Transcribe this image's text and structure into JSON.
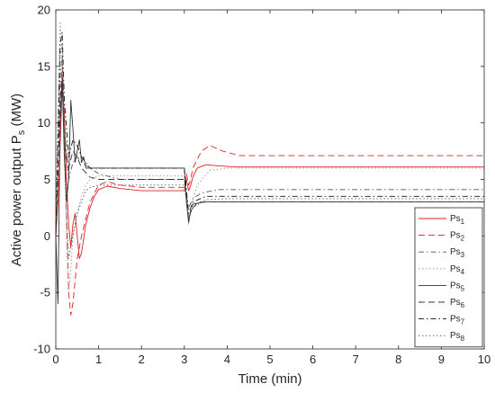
{
  "chart_data": {
    "type": "line",
    "title": "",
    "xlabel": "Time (min)",
    "ylabel_main": "Active power output P",
    "ylabel_sub": "s",
    "ylabel_unit": " (MW)",
    "xlim": [
      0,
      10
    ],
    "ylim": [
      -10,
      20
    ],
    "xticks": [
      "0",
      "1",
      "2",
      "3",
      "4",
      "5",
      "6",
      "7",
      "8",
      "9",
      "10"
    ],
    "yticks": [
      "-10",
      "-5",
      "0",
      "5",
      "10",
      "15",
      "20"
    ],
    "grid": false,
    "legend_position": "lower-right",
    "series": [
      {
        "name_main": "Ps",
        "name_sub": "1",
        "color": "#e02020",
        "dash": "solid",
        "x": [
          0,
          0.05,
          0.1,
          0.15,
          0.2,
          0.25,
          0.3,
          0.35,
          0.4,
          0.45,
          0.5,
          0.55,
          0.6,
          0.7,
          0.8,
          0.9,
          1.0,
          1.2,
          1.5,
          2,
          2.5,
          3.0,
          3.05,
          3.1,
          3.15,
          3.2,
          3.3,
          3.5,
          3.8,
          4.2,
          5,
          7,
          10
        ],
        "y": [
          0,
          3,
          8,
          13,
          11,
          5,
          1,
          -1,
          1,
          2,
          0,
          -2,
          -1.5,
          1,
          2.5,
          3.5,
          4.1,
          4.4,
          4.2,
          4.0,
          4.0,
          4.0,
          5.0,
          4.0,
          4.5,
          5.2,
          6.0,
          6.3,
          6.2,
          6.1,
          6.1,
          6.1,
          6.1
        ]
      },
      {
        "name_main": "Ps",
        "name_sub": "2",
        "color": "#e02020",
        "dash": "7,4",
        "x": [
          0,
          0.05,
          0.1,
          0.15,
          0.2,
          0.25,
          0.3,
          0.35,
          0.4,
          0.45,
          0.5,
          0.6,
          0.7,
          0.8,
          1.0,
          1.2,
          1.5,
          2,
          2.5,
          3.0,
          3.05,
          3.1,
          3.15,
          3.2,
          3.4,
          3.6,
          3.9,
          4.3,
          5,
          7,
          10
        ],
        "y": [
          0,
          5,
          12,
          15,
          9,
          2,
          -5,
          -7,
          -6,
          -4,
          -2,
          0,
          1.5,
          3,
          4.5,
          4.8,
          4.5,
          4.3,
          4.3,
          4.3,
          5.5,
          4.5,
          5.0,
          6.0,
          7.5,
          8.0,
          7.5,
          7.1,
          7.1,
          7.1,
          7.1
        ]
      },
      {
        "name_main": "Ps",
        "name_sub": "3",
        "color": "#555555",
        "dash": "6,3,1.5,3",
        "x": [
          0,
          0.05,
          0.1,
          0.15,
          0.2,
          0.3,
          0.4,
          0.5,
          0.6,
          0.8,
          1.0,
          1.5,
          2,
          2.5,
          3.0,
          3.05,
          3.1,
          3.2,
          3.4,
          3.8,
          4.5,
          5,
          7,
          10
        ],
        "y": [
          0,
          8,
          14,
          16,
          10,
          5,
          6.5,
          7,
          6.5,
          6.0,
          5.5,
          5.0,
          5.0,
          5.0,
          5.0,
          3.5,
          2.5,
          3.3,
          3.8,
          4.1,
          4.1,
          4.1,
          4.1,
          4.1
        ]
      },
      {
        "name_main": "Ps",
        "name_sub": "4",
        "color": "#909090",
        "dash": "1.5,2.5",
        "x": [
          0,
          0.05,
          0.1,
          0.15,
          0.2,
          0.25,
          0.3,
          0.35,
          0.4,
          0.5,
          0.6,
          0.7,
          0.8,
          1.0,
          1.5,
          2,
          3.0,
          3.05,
          3.1,
          3.15,
          3.3,
          3.6,
          4.0,
          5,
          7,
          10
        ],
        "y": [
          0,
          10,
          19,
          16,
          8,
          0,
          -5,
          -3,
          0,
          2,
          3.5,
          4.5,
          5.0,
          5.3,
          5.3,
          5.3,
          5.3,
          3.0,
          1.0,
          2.5,
          4.5,
          5.8,
          6.0,
          6.0,
          6.0,
          6.0
        ]
      },
      {
        "name_main": "Ps",
        "name_sub": "5",
        "color": "#333333",
        "dash": "solid",
        "x": [
          0,
          0.05,
          0.1,
          0.15,
          0.2,
          0.25,
          0.3,
          0.35,
          0.4,
          0.45,
          0.5,
          0.55,
          0.6,
          0.65,
          0.7,
          0.8,
          0.9,
          1.0,
          1.5,
          2,
          2.5,
          3.0,
          3.05,
          3.1,
          3.15,
          3.2,
          3.3,
          3.5,
          4.0,
          5,
          7,
          10
        ],
        "y": [
          0,
          -6,
          10,
          14,
          7,
          3,
          5,
          12,
          9.5,
          6.5,
          7.5,
          8.5,
          6.5,
          7.0,
          6.0,
          6.0,
          6.0,
          6.0,
          6.0,
          6.0,
          6.0,
          6.0,
          3.0,
          1.2,
          2.2,
          2.5,
          2.9,
          3.0,
          3.0,
          3.0,
          3.0,
          3.0
        ]
      },
      {
        "name_main": "Ps",
        "name_sub": "6",
        "color": "#333333",
        "dash": "7,4",
        "x": [
          0,
          0.05,
          0.1,
          0.15,
          0.2,
          0.3,
          0.4,
          0.5,
          0.6,
          0.8,
          1.0,
          1.5,
          2,
          3.0,
          3.05,
          3.1,
          3.2,
          3.4,
          4.0,
          5,
          7,
          10
        ],
        "y": [
          0,
          6,
          12,
          14,
          8,
          6,
          7.5,
          7.0,
          6.0,
          5.2,
          5.0,
          5.0,
          5.0,
          5.0,
          3.5,
          1.5,
          2.8,
          3.0,
          3.0,
          3.0,
          3.0,
          3.0
        ]
      },
      {
        "name_main": "Ps",
        "name_sub": "7",
        "color": "#111111",
        "dash": "6,3,1.5,3",
        "x": [
          0,
          0.05,
          0.1,
          0.15,
          0.2,
          0.3,
          0.4,
          0.5,
          0.6,
          0.8,
          1.0,
          1.5,
          2,
          3.0,
          3.05,
          3.1,
          3.2,
          3.5,
          4.0,
          5,
          7,
          10
        ],
        "y": [
          0,
          9,
          17,
          18,
          12,
          7,
          8.5,
          8.0,
          7.0,
          6.0,
          6.0,
          6.0,
          6.0,
          6.0,
          4.0,
          2.0,
          3.0,
          3.5,
          3.5,
          3.5,
          3.5,
          3.5
        ]
      },
      {
        "name_main": "Ps",
        "name_sub": "8",
        "color": "#555555",
        "dash": "1.5,2.5",
        "x": [
          0,
          0.05,
          0.1,
          0.15,
          0.2,
          0.25,
          0.3,
          0.4,
          0.5,
          0.6,
          0.7,
          0.8,
          1.0,
          1.5,
          2,
          3.0,
          3.05,
          3.1,
          3.2,
          3.5,
          4.0,
          5,
          7,
          10
        ],
        "y": [
          0,
          8,
          16,
          17,
          9,
          2,
          -2,
          0,
          2,
          3.0,
          4.0,
          4.3,
          4.5,
          4.5,
          4.5,
          4.5,
          3.0,
          1.5,
          2.5,
          3.2,
          3.3,
          3.3,
          3.3,
          3.3
        ]
      }
    ]
  }
}
